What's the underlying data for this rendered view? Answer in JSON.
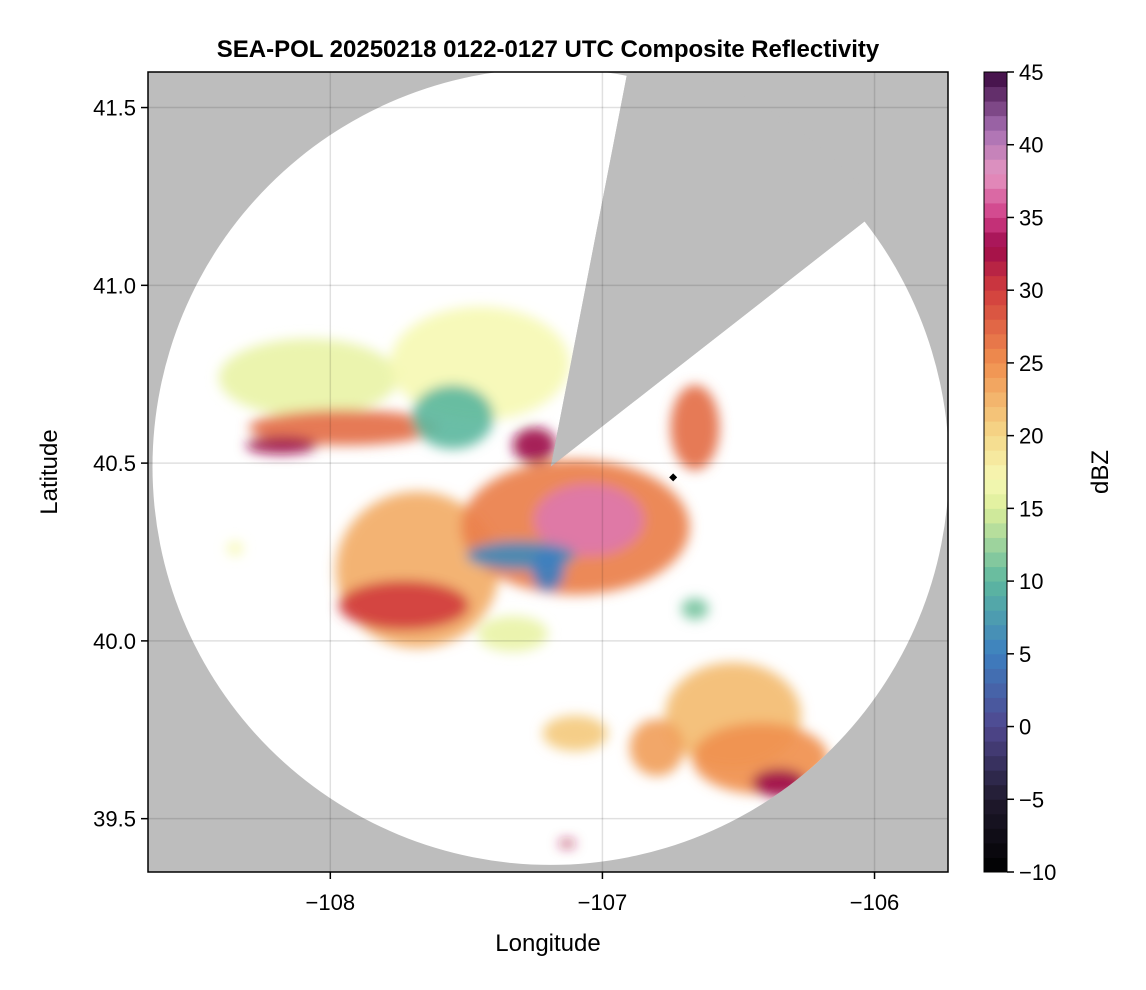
{
  "chart_data": {
    "type": "heatmap",
    "title": "SEA-POL 20250218 0122-0127 UTC Composite Reflectivity",
    "xlabel": "Longitude",
    "ylabel": "Latitude",
    "xlim": [
      -108.67,
      -105.73
    ],
    "ylim": [
      39.35,
      41.6
    ],
    "xticks": [
      -108,
      -107,
      -106
    ],
    "xtick_labels": [
      "−108",
      "−107",
      "−106"
    ],
    "yticks": [
      39.5,
      40.0,
      40.5,
      41.0,
      41.5
    ],
    "ytick_labels": [
      "39.5",
      "40.0",
      "40.5",
      "41.0",
      "41.5"
    ],
    "grid": true,
    "background_color": "#bdbdbd",
    "radar": {
      "center": [
        -107.19,
        40.49
      ],
      "range_lat_deg": 1.12,
      "blocked_sector_bearings_deg": [
        11,
        52
      ],
      "coverage_color": "#ffffff",
      "marker_position": [
        -106.74,
        40.46
      ],
      "marker_color": "#000000"
    },
    "colorbar": {
      "label": "dBZ",
      "min": -10,
      "max": 45,
      "ticks": [
        -10,
        -5,
        0,
        5,
        10,
        15,
        20,
        25,
        30,
        35,
        40,
        45
      ],
      "tick_labels": [
        "−10",
        "−5",
        "0",
        "5",
        "10",
        "15",
        "20",
        "25",
        "30",
        "35",
        "40",
        "45"
      ],
      "colors": [
        {
          "dbz": -10,
          "color": "#000000"
        },
        {
          "dbz": -5,
          "color": "#201a2e"
        },
        {
          "dbz": 0,
          "color": "#50478f"
        },
        {
          "dbz": 5,
          "color": "#3d7fc0"
        },
        {
          "dbz": 10,
          "color": "#5db89f"
        },
        {
          "dbz": 15,
          "color": "#dcee9a"
        },
        {
          "dbz": 17,
          "color": "#f6f8b4"
        },
        {
          "dbz": 20,
          "color": "#f5d98a"
        },
        {
          "dbz": 25,
          "color": "#f0904f"
        },
        {
          "dbz": 30,
          "color": "#d13d3d"
        },
        {
          "dbz": 33,
          "color": "#9e0a4b"
        },
        {
          "dbz": 35,
          "color": "#cf3c86"
        },
        {
          "dbz": 38,
          "color": "#e596c2"
        },
        {
          "dbz": 41,
          "color": "#a66fb2"
        },
        {
          "dbz": 45,
          "color": "#3b0840"
        }
      ]
    },
    "echoes": [
      {
        "name": "northwest-stratiform",
        "center": [
          -108.08,
          40.74
        ],
        "size": [
          0.33,
          0.11
        ],
        "dbz": 16
      },
      {
        "name": "northwest-band",
        "center": [
          -107.95,
          40.6
        ],
        "size": [
          0.35,
          0.05
        ],
        "dbz": 27
      },
      {
        "name": "northwest-band-core",
        "center": [
          -108.18,
          40.55
        ],
        "size": [
          0.13,
          0.025
        ],
        "dbz": 33
      },
      {
        "name": "north-central-area",
        "center": [
          -107.45,
          40.78
        ],
        "size": [
          0.33,
          0.16
        ],
        "dbz": 17
      },
      {
        "name": "north-central-weak",
        "center": [
          -107.55,
          40.63
        ],
        "size": [
          0.15,
          0.09
        ],
        "dbz": 10
      },
      {
        "name": "north-central-core",
        "center": [
          -107.25,
          40.55
        ],
        "size": [
          0.08,
          0.05
        ],
        "dbz": 33
      },
      {
        "name": "northeast-cell",
        "center": [
          -106.66,
          40.6
        ],
        "size": [
          0.09,
          0.12
        ],
        "dbz": 27
      },
      {
        "name": "main-complex-west",
        "center": [
          -107.68,
          40.2
        ],
        "size": [
          0.3,
          0.22
        ],
        "dbz": 23
      },
      {
        "name": "main-complex-southwest",
        "center": [
          -107.73,
          40.1
        ],
        "size": [
          0.24,
          0.07
        ],
        "dbz": 30
      },
      {
        "name": "main-complex-east",
        "center": [
          -107.1,
          40.32
        ],
        "size": [
          0.42,
          0.19
        ],
        "dbz": 26
      },
      {
        "name": "main-complex-core",
        "center": [
          -107.05,
          40.34
        ],
        "size": [
          0.2,
          0.1
        ],
        "dbz": 37
      },
      {
        "name": "main-complex-weak-west",
        "center": [
          -107.3,
          40.24
        ],
        "size": [
          0.2,
          0.04
        ],
        "dbz": 6
      },
      {
        "name": "main-complex-weak-south",
        "center": [
          -107.2,
          40.2
        ],
        "size": [
          0.06,
          0.06
        ],
        "dbz": 5
      },
      {
        "name": "south-fringe",
        "center": [
          -107.33,
          40.02
        ],
        "size": [
          0.13,
          0.05
        ],
        "dbz": 16
      },
      {
        "name": "southeast-stratiform",
        "center": [
          -106.52,
          39.79
        ],
        "size": [
          0.25,
          0.15
        ],
        "dbz": 22
      },
      {
        "name": "southeast-band",
        "center": [
          -106.42,
          39.67
        ],
        "size": [
          0.25,
          0.1
        ],
        "dbz": 25
      },
      {
        "name": "southeast-core",
        "center": [
          -106.35,
          39.6
        ],
        "size": [
          0.1,
          0.04
        ],
        "dbz": 33
      },
      {
        "name": "south-cells",
        "center": [
          -106.8,
          39.7
        ],
        "size": [
          0.1,
          0.08
        ],
        "dbz": 24
      },
      {
        "name": "south-west-cells",
        "center": [
          -107.1,
          39.74
        ],
        "size": [
          0.12,
          0.05
        ],
        "dbz": 21
      },
      {
        "name": "small-cell-east",
        "center": [
          -106.66,
          40.09
        ],
        "size": [
          0.05,
          0.03
        ],
        "dbz": 11
      },
      {
        "name": "small-cell-southmost",
        "center": [
          -107.13,
          39.43
        ],
        "size": [
          0.03,
          0.01
        ],
        "dbz": 32
      },
      {
        "name": "small-cell-west",
        "center": [
          -108.35,
          40.26
        ],
        "size": [
          0.03,
          0.02
        ],
        "dbz": 17
      }
    ]
  }
}
